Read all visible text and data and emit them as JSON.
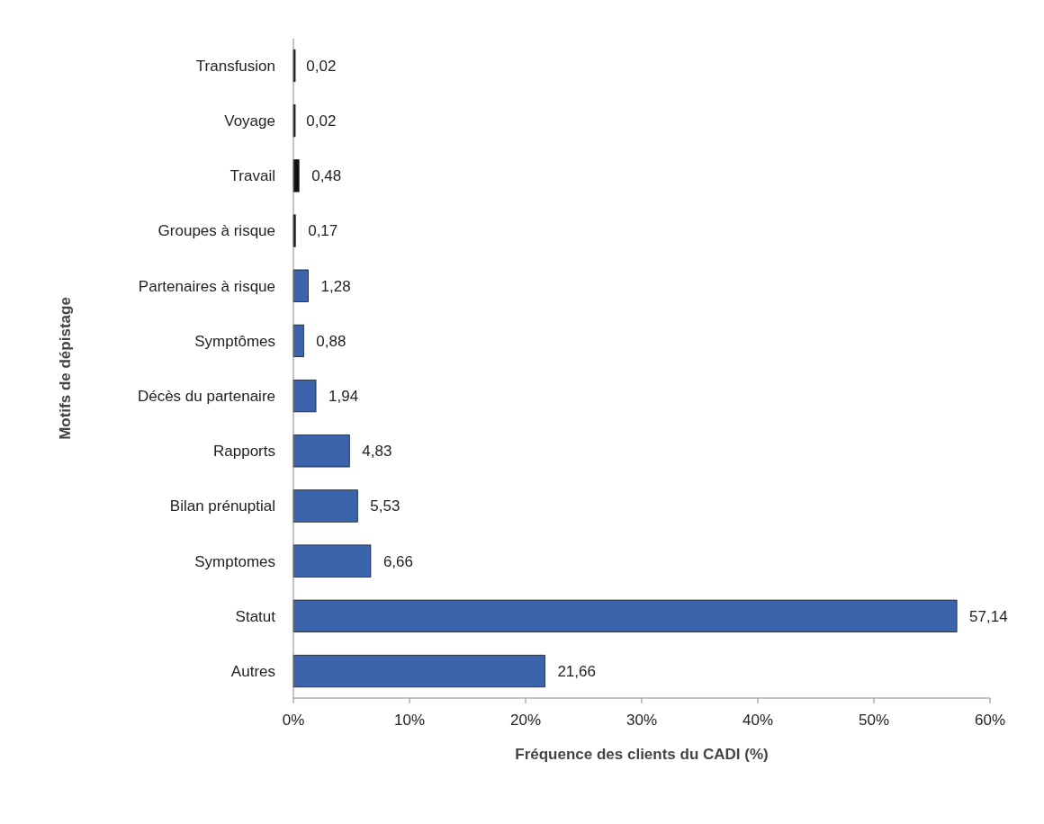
{
  "chart_data": {
    "type": "bar",
    "orientation": "horizontal",
    "xlabel": "Fréquence des clients du CADI (%)",
    "ylabel": "Motifs de dépistage",
    "categories": [
      "Transfusion",
      "Voyage",
      "Travail",
      "Groupes à risque",
      "Partenaires à risque",
      "Symptômes",
      "Décès du partenaire",
      "Rapports",
      "Bilan prénuptial",
      "Symptomes",
      "Statut",
      "Autres"
    ],
    "values": [
      0.02,
      0.02,
      0.48,
      0.17,
      1.28,
      0.88,
      1.94,
      4.83,
      5.53,
      6.66,
      57.14,
      21.66
    ],
    "value_labels": [
      "0,02",
      "0,02",
      "0,48",
      "0,17",
      "1,28",
      "0,88",
      "1,94",
      "4,83",
      "5,53",
      "6,66",
      "57,14",
      "21,66"
    ],
    "colors": [
      "#111111",
      "#111111",
      "#111111",
      "#111111",
      "#3b64ad",
      "#3b64ad",
      "#3b64ad",
      "#3b64ad",
      "#3b64ad",
      "#3b64ad",
      "#3b64ad",
      "#3b64ad"
    ],
    "xlim": [
      0,
      60
    ],
    "xticks": [
      {
        "value": 0,
        "label": "0%"
      },
      {
        "value": 10,
        "label": "10%"
      },
      {
        "value": 20,
        "label": "20%"
      },
      {
        "value": 30,
        "label": "30%"
      },
      {
        "value": 40,
        "label": "40%"
      },
      {
        "value": 50,
        "label": "50%"
      },
      {
        "value": 60,
        "label": "60%"
      }
    ],
    "grid": false
  }
}
